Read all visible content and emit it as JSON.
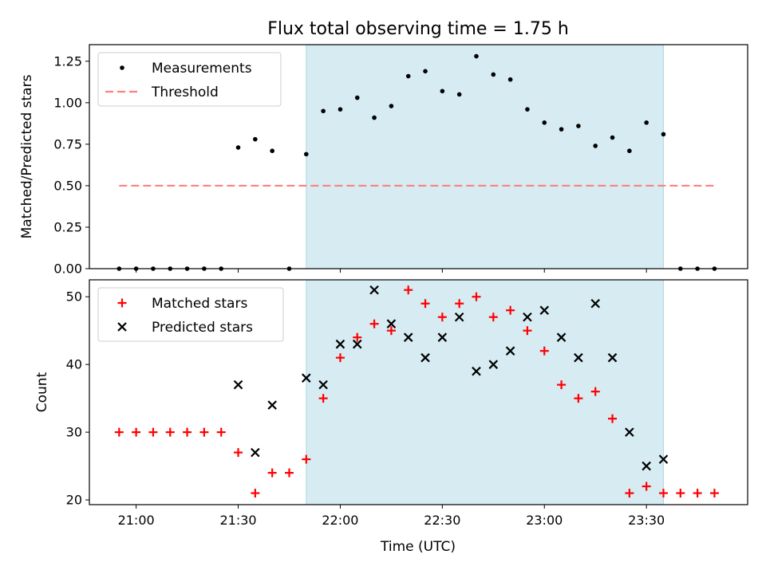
{
  "title": "Flux total observing time = 1.75 h",
  "colors": {
    "measurement": "#000000",
    "threshold": "#ff7f7f",
    "matched": "#ff0000",
    "predicted": "#000000",
    "shade": "#add8e6"
  },
  "chart_data": [
    {
      "type": "scatter",
      "ylabel": "Matched/Predicted stars",
      "ylim": [
        0,
        1.35
      ],
      "yticks": [
        "0.00",
        "0.25",
        "0.50",
        "0.75",
        "1.00",
        "1.25"
      ],
      "shaded_interval": [
        "21:50",
        "23:35"
      ],
      "legend": {
        "placement": "top-left",
        "entries": [
          "Measurements",
          "Threshold"
        ]
      },
      "threshold": {
        "value": 0.5,
        "x": [
          "20:55",
          "23:50"
        ]
      },
      "series": [
        {
          "name": "Measurements",
          "marker": "dot",
          "x": [
            "20:55",
            "21:00",
            "21:05",
            "21:10",
            "21:15",
            "21:20",
            "21:25",
            "21:30",
            "21:35",
            "21:40",
            "21:45",
            "21:50",
            "21:55",
            "22:00",
            "22:05",
            "22:10",
            "22:15",
            "22:20",
            "22:25",
            "22:30",
            "22:35",
            "22:40",
            "22:45",
            "22:50",
            "22:55",
            "23:00",
            "23:05",
            "23:10",
            "23:15",
            "23:20",
            "23:25",
            "23:30",
            "23:35",
            "23:40",
            "23:45",
            "23:50"
          ],
          "y": [
            0,
            0,
            0,
            0,
            0,
            0,
            0,
            0.73,
            0.78,
            0.71,
            0,
            0.69,
            0.95,
            0.96,
            1.03,
            0.91,
            0.98,
            1.16,
            1.19,
            1.07,
            1.05,
            1.28,
            1.17,
            1.14,
            0.96,
            0.88,
            0.84,
            0.86,
            0.74,
            0.79,
            0.71,
            0.88,
            0.81,
            0,
            0,
            0
          ]
        }
      ]
    },
    {
      "type": "scatter",
      "xlabel": "Time (UTC)",
      "ylabel": "Count",
      "ylim": [
        19.3,
        52.5
      ],
      "yticks": [
        "20",
        "30",
        "40",
        "50"
      ],
      "xticks": [
        "21:00",
        "21:30",
        "22:00",
        "22:30",
        "23:00",
        "23:30"
      ],
      "shaded_interval": [
        "21:50",
        "23:35"
      ],
      "legend": {
        "placement": "top-left",
        "entries": [
          "Matched stars",
          "Predicted stars"
        ]
      },
      "series": [
        {
          "name": "Matched stars",
          "marker": "plus",
          "x": [
            "20:55",
            "21:00",
            "21:05",
            "21:10",
            "21:15",
            "21:20",
            "21:25",
            "21:30",
            "21:35",
            "21:40",
            "21:45",
            "21:50",
            "21:55",
            "22:00",
            "22:05",
            "22:10",
            "22:15",
            "22:20",
            "22:25",
            "22:30",
            "22:35",
            "22:40",
            "22:45",
            "22:50",
            "22:55",
            "23:00",
            "23:05",
            "23:10",
            "23:15",
            "23:20",
            "23:25",
            "23:30",
            "23:35",
            "23:40",
            "23:45",
            "23:50"
          ],
          "y": [
            30,
            30,
            30,
            30,
            30,
            30,
            30,
            27,
            21,
            24,
            24,
            26,
            35,
            41,
            44,
            46,
            45,
            51,
            49,
            47,
            49,
            50,
            47,
            48,
            45,
            42,
            37,
            35,
            36,
            32,
            21,
            22,
            21,
            21,
            21,
            21
          ]
        },
        {
          "name": "Predicted stars",
          "marker": "x",
          "x": [
            "21:30",
            "21:35",
            "21:40",
            "21:50",
            "21:55",
            "22:00",
            "22:05",
            "22:10",
            "22:15",
            "22:20",
            "22:25",
            "22:30",
            "22:35",
            "22:40",
            "22:45",
            "22:50",
            "22:55",
            "23:00",
            "23:05",
            "23:10",
            "23:15",
            "23:20",
            "23:25",
            "23:30",
            "23:35"
          ],
          "y": [
            37,
            27,
            34,
            38,
            37,
            43,
            43,
            51,
            46,
            44,
            41,
            44,
            47,
            39,
            40,
            42,
            47,
            48,
            44,
            41,
            49,
            41,
            30,
            25,
            26
          ]
        }
      ]
    }
  ]
}
